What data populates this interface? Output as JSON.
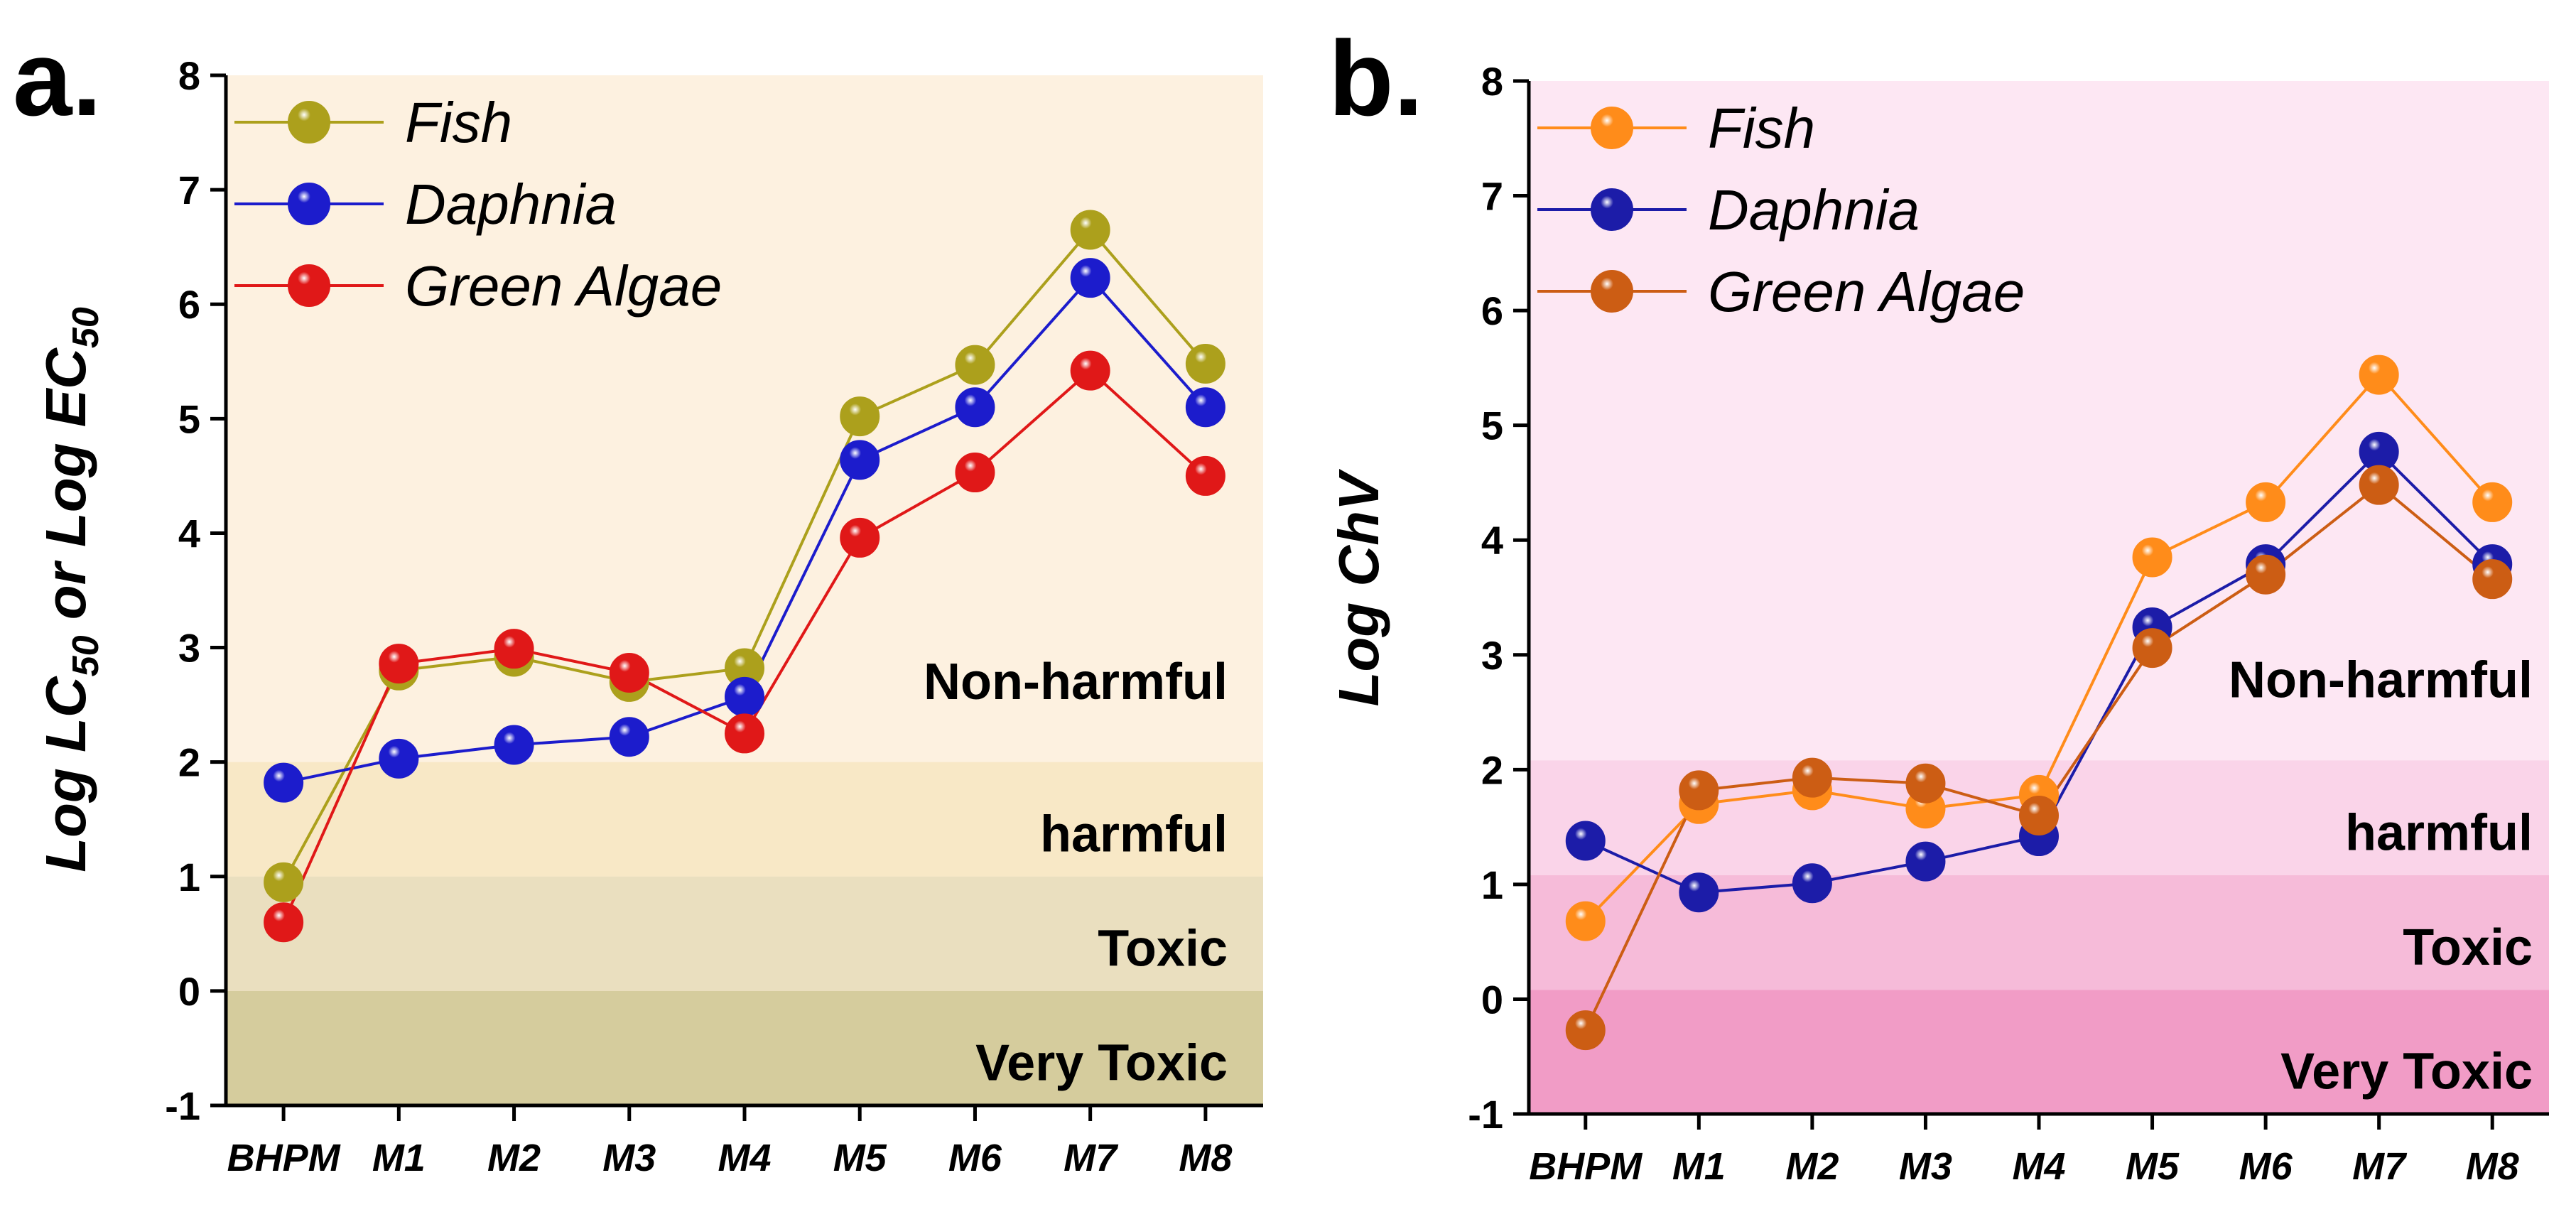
{
  "chart_data": [
    {
      "type": "line",
      "panel_label": "a.",
      "title": "",
      "xlabel": "",
      "ylabel_parts": [
        "Log LC",
        "50",
        " or Log EC",
        "50"
      ],
      "ylim": [
        -1,
        8
      ],
      "yticks": [
        "-1",
        "0",
        "1",
        "2",
        "3",
        "4",
        "5",
        "6",
        "7",
        "8"
      ],
      "categories": [
        "BHPM",
        "M1",
        "M2",
        "M3",
        "M4",
        "M5",
        "M6",
        "M7",
        "M8"
      ],
      "background_color": "#fdf1e0",
      "zones": [
        {
          "label": "Non-harmful",
          "from": 2,
          "to": 8,
          "color": "#fdf1e0"
        },
        {
          "label": "harmful",
          "from": 1,
          "to": 2,
          "color": "#f8e8c6"
        },
        {
          "label": "Toxic",
          "from": 0,
          "to": 1,
          "color": "#eadfbf"
        },
        {
          "label": "Very Toxic",
          "from": -1,
          "to": 0,
          "color": "#d5cc9d"
        }
      ],
      "series": [
        {
          "name": "Fish",
          "color": "#aca01c",
          "values": [
            0.95,
            2.8,
            2.92,
            2.7,
            2.82,
            5.02,
            5.47,
            6.65,
            5.48
          ]
        },
        {
          "name": "Daphnia",
          "color": "#1c1ccc",
          "values": [
            1.82,
            2.03,
            2.15,
            2.22,
            2.57,
            4.64,
            5.1,
            6.23,
            5.1
          ]
        },
        {
          "name": "Green Algae",
          "color": "#e01818",
          "values": [
            0.6,
            2.86,
            2.99,
            2.78,
            2.25,
            3.96,
            4.53,
            5.42,
            4.5
          ]
        }
      ],
      "legend_position": "top-left"
    },
    {
      "type": "line",
      "panel_label": "b.",
      "title": "",
      "xlabel": "",
      "ylabel_parts": [
        "Log ChV"
      ],
      "ylim": [
        -1,
        8
      ],
      "yticks": [
        "-1",
        "0",
        "1",
        "2",
        "3",
        "4",
        "5",
        "6",
        "7",
        "8"
      ],
      "categories": [
        "BHPM",
        "M1",
        "M2",
        "M3",
        "M4",
        "M5",
        "M6",
        "M7",
        "M8"
      ],
      "background_color": "#fde7f3",
      "zones": [
        {
          "label": "Non-harmful",
          "from": 2.08,
          "to": 8,
          "color": "#fde7f3"
        },
        {
          "label": "harmful",
          "from": 1.08,
          "to": 2.08,
          "color": "#fad4e9"
        },
        {
          "label": "Toxic",
          "from": 0.08,
          "to": 1.08,
          "color": "#f6bbd9"
        },
        {
          "label": "Very Toxic",
          "from": -1,
          "to": 0.08,
          "color": "#f19cc6"
        }
      ],
      "series": [
        {
          "name": "Fish",
          "color": "#ff8c1a",
          "values": [
            0.68,
            1.7,
            1.82,
            1.66,
            1.78,
            3.85,
            4.33,
            5.44,
            4.33
          ]
        },
        {
          "name": "Daphnia",
          "color": "#1c1ca8",
          "values": [
            1.38,
            0.93,
            1.01,
            1.2,
            1.42,
            3.24,
            3.79,
            4.77,
            3.79
          ]
        },
        {
          "name": "Green Algae",
          "color": "#cc5d14",
          "values": [
            -0.27,
            1.82,
            1.93,
            1.88,
            1.6,
            3.06,
            3.7,
            4.48,
            3.66
          ]
        }
      ],
      "legend_position": "top-left"
    }
  ]
}
